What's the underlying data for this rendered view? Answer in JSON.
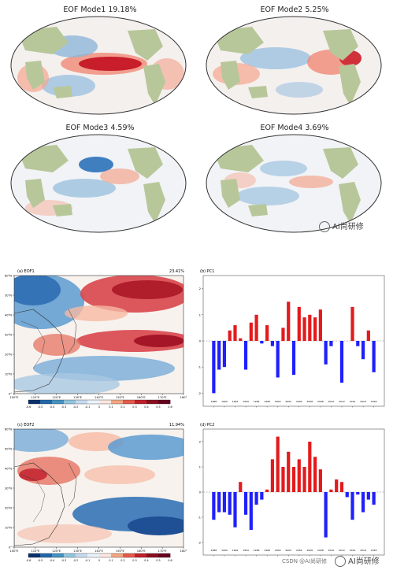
{
  "top_maps": [
    {
      "title": "EOF Mode1  19.18%"
    },
    {
      "title": "EOF Mode2  5.25%"
    },
    {
      "title": "EOF Mode3  4.59%"
    },
    {
      "title": "EOF Mode4  3.69%"
    }
  ],
  "watermark": {
    "text": "AI尚研修"
  },
  "csdn": {
    "text": "CSDN @AI尚研修"
  },
  "colors": {
    "positive": "#e31a1c",
    "negative": "#1f1fff"
  },
  "chart_data": [
    {
      "type": "heatmap",
      "panel_label": "(a)  EOF1",
      "variance_label": "23.41%",
      "y_ticks": [
        "0°",
        "10°N",
        "20°N",
        "30°N",
        "40°N",
        "50°N",
        "60°N"
      ],
      "x_ticks": [
        "100°E",
        "110°E",
        "120°E",
        "130°E",
        "140°E",
        "150°E",
        "160°E",
        "170°E",
        "180°"
      ],
      "colorbar_ticks": [
        "-0.6",
        "-0.5",
        "-0.4",
        "-0.3",
        "-0.2",
        "-0.1",
        "0",
        "0.1",
        "0.2",
        "0.3",
        "0.4",
        "0.5",
        "0.6"
      ]
    },
    {
      "type": "bar",
      "panel_label": "(b)  PC1",
      "ylim": [
        -2.5,
        2.5
      ],
      "y_ticks": [
        "-2",
        "-1",
        "0",
        "1",
        "2"
      ],
      "x_ticks": [
        "1988",
        "1990",
        "1992",
        "1994",
        "1996",
        "1998",
        "2000",
        "2002",
        "2004",
        "2006",
        "2008",
        "2010",
        "2012",
        "2014",
        "2016",
        "2018"
      ],
      "years": [
        1988,
        1989,
        1990,
        1991,
        1992,
        1993,
        1994,
        1995,
        1996,
        1997,
        1998,
        1999,
        2000,
        2001,
        2002,
        2003,
        2004,
        2005,
        2006,
        2007,
        2008,
        2009,
        2010,
        2011,
        2012,
        2013,
        2014,
        2015,
        2016,
        2017,
        2018
      ],
      "values": [
        -2.0,
        -1.1,
        -1.0,
        0.4,
        0.6,
        0.1,
        -1.1,
        0.7,
        1.0,
        -0.1,
        0.6,
        -0.2,
        -1.4,
        0.5,
        1.5,
        -1.3,
        1.3,
        0.9,
        1.0,
        0.9,
        1.2,
        -0.9,
        -0.2,
        0,
        -1.6,
        0,
        1.3,
        -0.2,
        -0.7,
        0.4,
        -1.2
      ]
    },
    {
      "type": "heatmap",
      "panel_label": "(c)  EOF2",
      "variance_label": "11.94%",
      "y_ticks": [
        "0°",
        "10°N",
        "20°N",
        "30°N",
        "40°N",
        "50°N",
        "60°N"
      ],
      "x_ticks": [
        "100°E",
        "110°E",
        "120°E",
        "130°E",
        "140°E",
        "150°E",
        "160°E",
        "170°E",
        "180°"
      ],
      "colorbar_ticks": [
        "-0.6",
        "-0.5",
        "-0.4",
        "-0.3",
        "-0.2",
        "-0.1",
        "0",
        "0.1",
        "0.2",
        "0.3",
        "0.4",
        "0.5",
        "0.6"
      ]
    },
    {
      "type": "bar",
      "panel_label": "(d)  PC2",
      "ylim": [
        -2.5,
        2.5
      ],
      "y_ticks": [
        "-2",
        "-1",
        "0",
        "1",
        "2"
      ],
      "x_ticks": [
        "1988",
        "1990",
        "1992",
        "1994",
        "1996",
        "1998",
        "2000",
        "2002",
        "2004",
        "2006",
        "2008",
        "2010",
        "2012",
        "2014",
        "2016",
        "2018"
      ],
      "years": [
        1988,
        1989,
        1990,
        1991,
        1992,
        1993,
        1994,
        1995,
        1996,
        1997,
        1998,
        1999,
        2000,
        2001,
        2002,
        2003,
        2004,
        2005,
        2006,
        2007,
        2008,
        2009,
        2010,
        2011,
        2012,
        2013,
        2014,
        2015,
        2016,
        2017,
        2018
      ],
      "values": [
        -1.1,
        -0.8,
        -0.8,
        -0.9,
        -1.4,
        0.4,
        -0.9,
        -1.5,
        -0.5,
        -0.3,
        0.1,
        1.3,
        2.2,
        1.0,
        1.6,
        1.0,
        1.3,
        1.0,
        2.0,
        1.4,
        0.9,
        -1.8,
        0.1,
        0.5,
        0.4,
        -0.2,
        -1.1,
        -0.1,
        -0.8,
        -0.3,
        -0.5
      ]
    }
  ]
}
